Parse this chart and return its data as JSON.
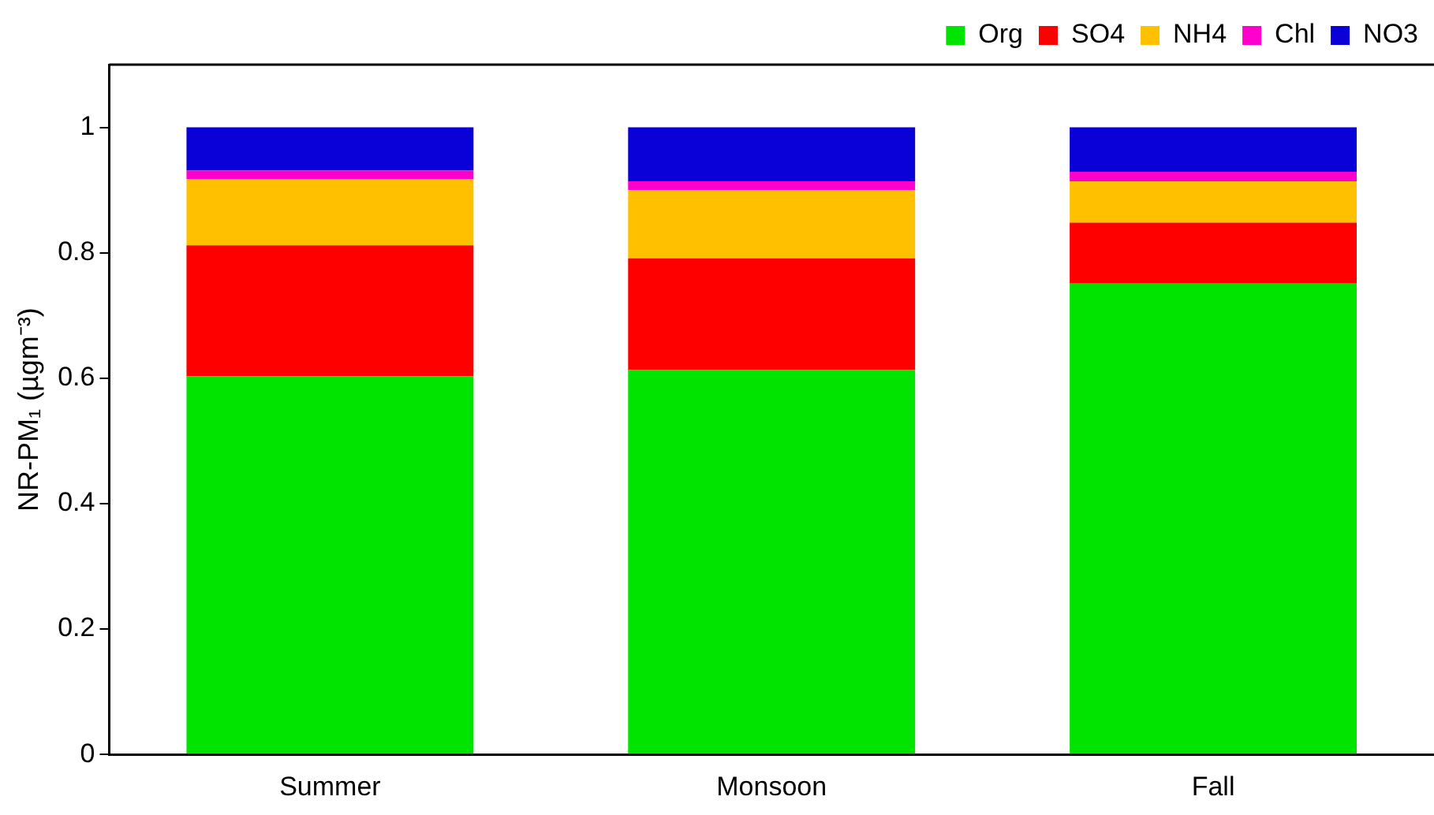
{
  "chart_data": {
    "type": "bar",
    "stacked": true,
    "ylabel": "NR-PM₁ (µgm⁻³)",
    "categories": [
      "Summer",
      "Monsoon",
      "Fall"
    ],
    "series": [
      {
        "name": "Org",
        "color": "#00e400",
        "values": [
          0.603,
          0.613,
          0.751
        ]
      },
      {
        "name": "SO4",
        "color": "#ff0000",
        "values": [
          0.209,
          0.178,
          0.097
        ]
      },
      {
        "name": "NH4",
        "color": "#ffc000",
        "values": [
          0.105,
          0.109,
          0.066
        ]
      },
      {
        "name": "Chl",
        "color": "#ff00cc",
        "values": [
          0.014,
          0.014,
          0.015
        ]
      },
      {
        "name": "NO3",
        "color": "#0a00d8",
        "values": [
          0.069,
          0.086,
          0.071
        ]
      }
    ],
    "ylim": [
      0,
      1.1
    ],
    "yticks": [
      0,
      0.2,
      0.4,
      0.6,
      0.8,
      1
    ],
    "grid": false,
    "legend": "top right"
  }
}
